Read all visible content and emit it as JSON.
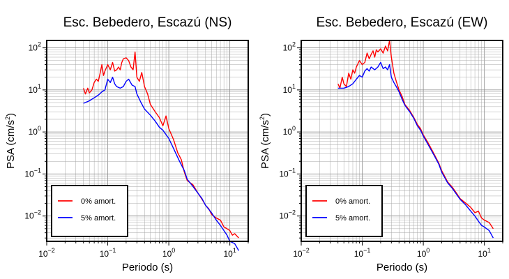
{
  "chart_data": [
    {
      "type": "line",
      "title": "Esc. Bebedero, Escazú (NS)",
      "xlabel": "Periodo (s)",
      "ylabel_main": "PSA (cm/s",
      "ylabel_sup": "2",
      "ylabel_close": ")",
      "xscale": "log",
      "yscale": "log",
      "xlim": [
        0.01,
        20
      ],
      "ylim": [
        0.0025,
        150
      ],
      "grid": true,
      "legend_position": "bottom-left",
      "x_ticks": [
        {
          "value": 0.01,
          "base": "10",
          "exp": "−2"
        },
        {
          "value": 0.1,
          "base": "10",
          "exp": "−1"
        },
        {
          "value": 1,
          "base": "10",
          "exp": "0"
        },
        {
          "value": 10,
          "base": "10",
          "exp": "1"
        }
      ],
      "y_ticks": [
        {
          "value": 0.01,
          "base": "10",
          "exp": "−2"
        },
        {
          "value": 0.1,
          "base": "10",
          "exp": "−1"
        },
        {
          "value": 1,
          "base": "10",
          "exp": "0"
        },
        {
          "value": 10,
          "base": "10",
          "exp": "1"
        },
        {
          "value": 100,
          "base": "10",
          "exp": "2"
        }
      ],
      "series": [
        {
          "name": "0% amort.",
          "color": "#ff0000",
          "points": [
            [
              0.04,
              11
            ],
            [
              0.043,
              8
            ],
            [
              0.047,
              11
            ],
            [
              0.05,
              8.5
            ],
            [
              0.055,
              10
            ],
            [
              0.06,
              15
            ],
            [
              0.065,
              18
            ],
            [
              0.07,
              16
            ],
            [
              0.075,
              25
            ],
            [
              0.08,
              40
            ],
            [
              0.085,
              22
            ],
            [
              0.09,
              28
            ],
            [
              0.1,
              40
            ],
            [
              0.11,
              30
            ],
            [
              0.12,
              45
            ],
            [
              0.13,
              28
            ],
            [
              0.14,
              30
            ],
            [
              0.15,
              35
            ],
            [
              0.16,
              30
            ],
            [
              0.17,
              45
            ],
            [
              0.18,
              55
            ],
            [
              0.2,
              58
            ],
            [
              0.22,
              50
            ],
            [
              0.24,
              35
            ],
            [
              0.26,
              30
            ],
            [
              0.28,
              80
            ],
            [
              0.3,
              20
            ],
            [
              0.33,
              16
            ],
            [
              0.36,
              26
            ],
            [
              0.4,
              12
            ],
            [
              0.45,
              8
            ],
            [
              0.5,
              4.5
            ],
            [
              0.6,
              3
            ],
            [
              0.7,
              2.2
            ],
            [
              0.8,
              1.4
            ],
            [
              0.9,
              2.4
            ],
            [
              1.0,
              1.2
            ],
            [
              1.2,
              0.65
            ],
            [
              1.4,
              0.32
            ],
            [
              1.6,
              0.22
            ],
            [
              1.8,
              0.11
            ],
            [
              2.0,
              0.07
            ],
            [
              2.5,
              0.055
            ],
            [
              3.0,
              0.035
            ],
            [
              3.5,
              0.025
            ],
            [
              4.0,
              0.018
            ],
            [
              4.5,
              0.015
            ],
            [
              5.0,
              0.011
            ],
            [
              6.0,
              0.009
            ],
            [
              7.0,
              0.008
            ],
            [
              8.0,
              0.0055
            ],
            [
              9.0,
              0.005
            ],
            [
              10.0,
              0.0045
            ],
            [
              11.0,
              0.0035
            ],
            [
              12.0,
              0.0038
            ],
            [
              14.0,
              0.003
            ]
          ]
        },
        {
          "name": "5% amort.",
          "color": "#0000ff",
          "points": [
            [
              0.04,
              4.8
            ],
            [
              0.05,
              5.5
            ],
            [
              0.06,
              6.5
            ],
            [
              0.07,
              7.5
            ],
            [
              0.08,
              9
            ],
            [
              0.09,
              10
            ],
            [
              0.1,
              18
            ],
            [
              0.11,
              15
            ],
            [
              0.12,
              20
            ],
            [
              0.13,
              14
            ],
            [
              0.14,
              12
            ],
            [
              0.16,
              11
            ],
            [
              0.18,
              12
            ],
            [
              0.2,
              16
            ],
            [
              0.22,
              18
            ],
            [
              0.25,
              13
            ],
            [
              0.28,
              12
            ],
            [
              0.3,
              8
            ],
            [
              0.35,
              5
            ],
            [
              0.4,
              3.5
            ],
            [
              0.5,
              2.5
            ],
            [
              0.6,
              1.8
            ],
            [
              0.7,
              1.3
            ],
            [
              0.8,
              1.1
            ],
            [
              1.0,
              0.7
            ],
            [
              1.2,
              0.4
            ],
            [
              1.5,
              0.2
            ],
            [
              1.8,
              0.12
            ],
            [
              2.0,
              0.075
            ],
            [
              2.5,
              0.05
            ],
            [
              3.0,
              0.035
            ],
            [
              3.5,
              0.026
            ],
            [
              4.0,
              0.018
            ],
            [
              5.0,
              0.012
            ],
            [
              6.0,
              0.008
            ],
            [
              7.0,
              0.006
            ],
            [
              8.0,
              0.0045
            ],
            [
              9.0,
              0.0035
            ],
            [
              10.0,
              0.0025
            ],
            [
              12.0,
              0.0022
            ],
            [
              14.0,
              0.0015
            ]
          ]
        }
      ]
    },
    {
      "type": "line",
      "title": "Esc. Bebedero, Escazú (EW)",
      "xlabel": "Periodo (s)",
      "ylabel_main": "PSA (cm/s",
      "ylabel_sup": "2",
      "ylabel_close": ")",
      "xscale": "log",
      "yscale": "log",
      "xlim": [
        0.01,
        20
      ],
      "ylim": [
        0.0025,
        150
      ],
      "grid": true,
      "legend_position": "bottom-left",
      "x_ticks": [
        {
          "value": 0.01,
          "base": "10",
          "exp": "−2"
        },
        {
          "value": 0.1,
          "base": "10",
          "exp": "−1"
        },
        {
          "value": 1,
          "base": "10",
          "exp": "0"
        },
        {
          "value": 10,
          "base": "10",
          "exp": "1"
        }
      ],
      "y_ticks": [
        {
          "value": 0.01,
          "base": "10",
          "exp": "−2"
        },
        {
          "value": 0.1,
          "base": "10",
          "exp": "−1"
        },
        {
          "value": 1,
          "base": "10",
          "exp": "0"
        },
        {
          "value": 10,
          "base": "10",
          "exp": "1"
        },
        {
          "value": 100,
          "base": "10",
          "exp": "2"
        }
      ],
      "series": [
        {
          "name": "0% amort.",
          "color": "#ff0000",
          "points": [
            [
              0.04,
              14
            ],
            [
              0.043,
              11
            ],
            [
              0.047,
              20
            ],
            [
              0.05,
              14
            ],
            [
              0.055,
              12
            ],
            [
              0.06,
              25
            ],
            [
              0.065,
              18
            ],
            [
              0.07,
              30
            ],
            [
              0.075,
              25
            ],
            [
              0.08,
              35
            ],
            [
              0.09,
              50
            ],
            [
              0.1,
              40
            ],
            [
              0.11,
              45
            ],
            [
              0.12,
              75
            ],
            [
              0.13,
              55
            ],
            [
              0.14,
              70
            ],
            [
              0.15,
              85
            ],
            [
              0.16,
              60
            ],
            [
              0.17,
              90
            ],
            [
              0.18,
              80
            ],
            [
              0.2,
              95
            ],
            [
              0.22,
              75
            ],
            [
              0.24,
              110
            ],
            [
              0.26,
              85
            ],
            [
              0.28,
              150
            ],
            [
              0.3,
              60
            ],
            [
              0.33,
              25
            ],
            [
              0.36,
              16
            ],
            [
              0.4,
              10
            ],
            [
              0.45,
              7
            ],
            [
              0.5,
              4.5
            ],
            [
              0.6,
              3.2
            ],
            [
              0.7,
              2.2
            ],
            [
              0.8,
              1.5
            ],
            [
              0.9,
              1.2
            ],
            [
              1.0,
              0.85
            ],
            [
              1.2,
              0.55
            ],
            [
              1.5,
              0.3
            ],
            [
              1.8,
              0.18
            ],
            [
              2.0,
              0.12
            ],
            [
              2.5,
              0.065
            ],
            [
              3.0,
              0.048
            ],
            [
              3.5,
              0.035
            ],
            [
              4.0,
              0.026
            ],
            [
              5.0,
              0.02
            ],
            [
              6.0,
              0.016
            ],
            [
              7.0,
              0.012
            ],
            [
              8.0,
              0.013
            ],
            [
              9.0,
              0.009
            ],
            [
              10.0,
              0.008
            ],
            [
              12.0,
              0.007
            ],
            [
              14.0,
              0.005
            ]
          ]
        },
        {
          "name": "5% amort.",
          "color": "#0000ff",
          "points": [
            [
              0.04,
              11
            ],
            [
              0.05,
              11
            ],
            [
              0.06,
              12
            ],
            [
              0.07,
              14
            ],
            [
              0.08,
              18
            ],
            [
              0.09,
              22
            ],
            [
              0.1,
              20
            ],
            [
              0.11,
              28
            ],
            [
              0.12,
              32
            ],
            [
              0.13,
              28
            ],
            [
              0.14,
              35
            ],
            [
              0.16,
              30
            ],
            [
              0.18,
              35
            ],
            [
              0.2,
              45
            ],
            [
              0.22,
              32
            ],
            [
              0.24,
              35
            ],
            [
              0.26,
              30
            ],
            [
              0.28,
              40
            ],
            [
              0.3,
              20
            ],
            [
              0.33,
              15
            ],
            [
              0.36,
              12
            ],
            [
              0.4,
              9
            ],
            [
              0.45,
              6
            ],
            [
              0.5,
              4.3
            ],
            [
              0.6,
              3
            ],
            [
              0.7,
              2.1
            ],
            [
              0.8,
              1.4
            ],
            [
              0.9,
              1.1
            ],
            [
              1.0,
              0.8
            ],
            [
              1.2,
              0.5
            ],
            [
              1.5,
              0.28
            ],
            [
              1.8,
              0.17
            ],
            [
              2.0,
              0.11
            ],
            [
              2.5,
              0.062
            ],
            [
              3.0,
              0.045
            ],
            [
              3.5,
              0.033
            ],
            [
              4.0,
              0.025
            ],
            [
              5.0,
              0.018
            ],
            [
              6.0,
              0.013
            ],
            [
              7.0,
              0.01
            ],
            [
              8.0,
              0.0075
            ],
            [
              9.0,
              0.006
            ],
            [
              10.0,
              0.0055
            ],
            [
              12.0,
              0.0045
            ],
            [
              14.0,
              0.003
            ]
          ]
        }
      ]
    }
  ]
}
